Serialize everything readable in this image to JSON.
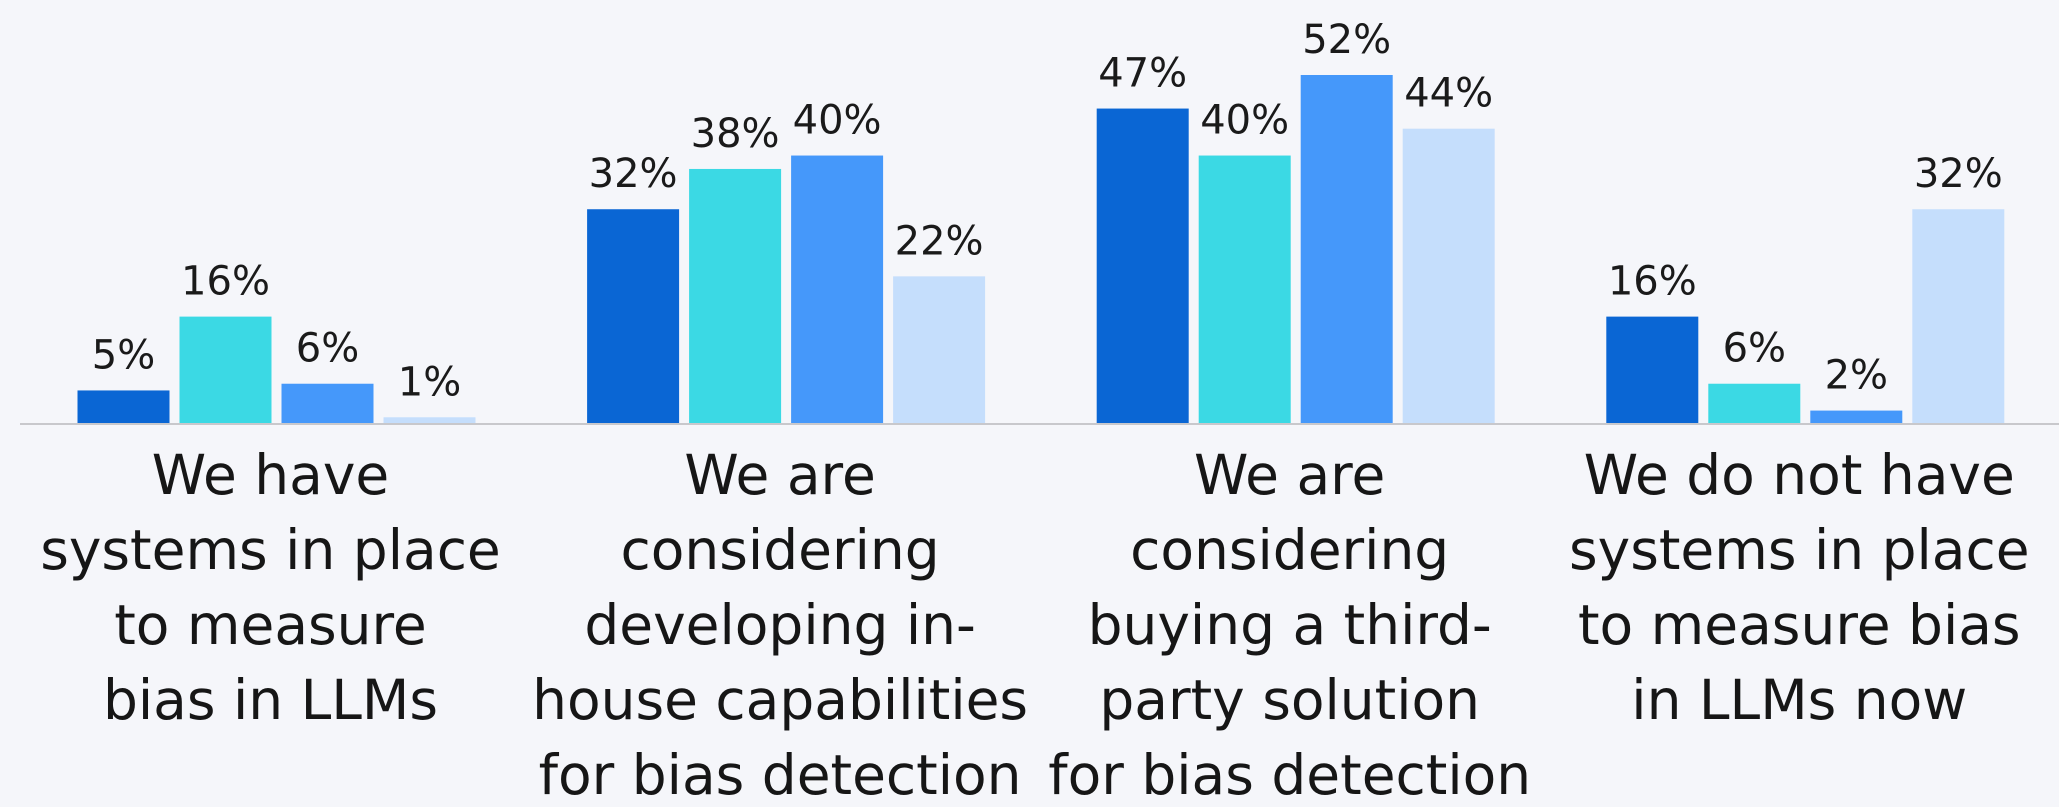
{
  "chart_data": {
    "type": "bar",
    "categories": [
      "We have\nsystems in place\nto measure\nbias in LLMs",
      "We are\nconsidering\ndeveloping in-\nhouse capabilities\nfor bias detection",
      "We are\nconsidering\nbuying a third-\nparty solution\nfor bias detection",
      "We do not have\nsystems in place\nto measure bias\nin LLMs now"
    ],
    "series": [
      {
        "color": "#0a66d4",
        "values": [
          5,
          32,
          47,
          16
        ],
        "value_labels": [
          "5%",
          "32%",
          "47%",
          "16%"
        ]
      },
      {
        "color": "#3bd9e4",
        "values": [
          16,
          38,
          40,
          6
        ],
        "value_labels": [
          "16%",
          "38%",
          "40%",
          "6%"
        ]
      },
      {
        "color": "#4598fa",
        "values": [
          6,
          40,
          52,
          2
        ],
        "value_labels": [
          "6%",
          "40%",
          "52%",
          "2%"
        ]
      },
      {
        "color": "#c5defc",
        "values": [
          1,
          22,
          44,
          32
        ],
        "value_labels": [
          "1%",
          "22%",
          "44%",
          "32%"
        ]
      }
    ],
    "ylim": [
      0,
      52
    ]
  }
}
